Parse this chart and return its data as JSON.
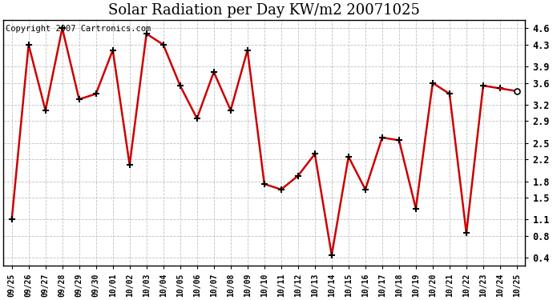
{
  "title": "Solar Radiation per Day KW/m2 20071025",
  "copyright": "Copyright 2007 Cartronics.com",
  "dates": [
    "09/25",
    "09/26",
    "09/27",
    "09/28",
    "09/29",
    "09/30",
    "10/01",
    "10/02",
    "10/03",
    "10/04",
    "10/05",
    "10/06",
    "10/07",
    "10/08",
    "10/09",
    "10/10",
    "10/11",
    "10/12",
    "10/13",
    "10/14",
    "10/15",
    "10/16",
    "10/17",
    "10/18",
    "10/19",
    "10/20",
    "10/21",
    "10/22",
    "10/23",
    "10/24",
    "10/25"
  ],
  "values": [
    1.1,
    4.3,
    3.1,
    4.6,
    3.3,
    3.4,
    4.2,
    2.1,
    4.5,
    4.3,
    3.55,
    2.95,
    3.8,
    3.1,
    4.2,
    1.75,
    1.65,
    1.9,
    2.3,
    0.45,
    2.25,
    1.65,
    2.6,
    2.55,
    1.3,
    3.6,
    3.4,
    0.85,
    3.55,
    3.5,
    3.45
  ],
  "line_color": "#cc0000",
  "marker_color": "#000000",
  "bg_color": "#ffffff",
  "grid_color": "#c0c0c0",
  "ylim": [
    0.25,
    4.75
  ],
  "yticks": [
    0.4,
    0.8,
    1.1,
    1.5,
    1.8,
    2.2,
    2.5,
    2.9,
    3.2,
    3.6,
    3.9,
    4.3,
    4.6
  ],
  "title_fontsize": 13,
  "copyright_fontsize": 7.5,
  "tick_fontsize": 8.5,
  "xtick_fontsize": 7
}
